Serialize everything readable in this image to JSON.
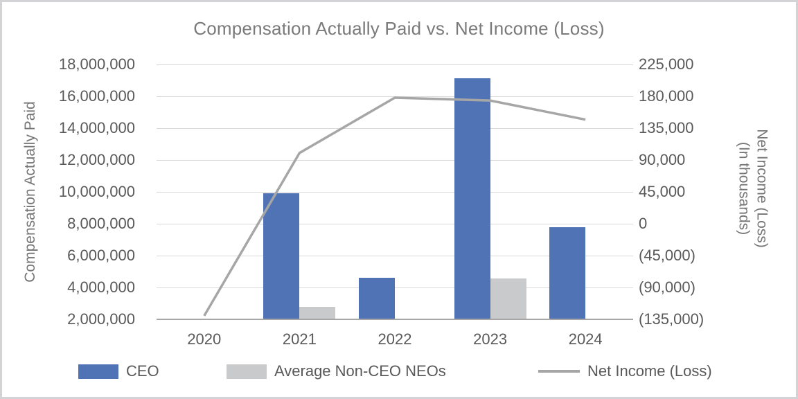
{
  "chart_data": {
    "type": "combo",
    "title": "Compensation Actually Paid vs. Net Income (Loss)",
    "categories": [
      "2020",
      "2021",
      "2022",
      "2023",
      "2024"
    ],
    "series": [
      {
        "name": "CEO",
        "type": "bar",
        "axis": "left",
        "color": "#4f73b5",
        "values": [
          null,
          9900000,
          4600000,
          17150000,
          7800000
        ]
      },
      {
        "name": "Average Non-CEO NEOs",
        "type": "bar",
        "axis": "left",
        "color": "#c9cacc",
        "values": [
          null,
          2800000,
          null,
          4550000,
          null
        ]
      },
      {
        "name": "Net Income (Loss)",
        "type": "line",
        "axis": "right",
        "color": "#a6a6a6",
        "values": [
          -130000,
          100000,
          178000,
          174000,
          147000
        ]
      }
    ],
    "left_axis": {
      "label": "Compensation Actually Paid",
      "ticks": [
        "18,000,000",
        "16,000,000",
        "14,000,000",
        "12,000,000",
        "10,000,000",
        "8,000,000",
        "6,000,000",
        "4,000,000",
        "2,000,000"
      ],
      "lim": [
        2000000,
        18000000
      ]
    },
    "right_axis": {
      "label_lines": [
        "Net Income (Loss)",
        "(In thousands)"
      ],
      "ticks": [
        "225,000",
        "180,000",
        "135,000",
        "90,000",
        "45,000",
        "0",
        "(45,000)",
        "(90,000)",
        "(135,000)"
      ],
      "lim": [
        -135000,
        225000
      ]
    },
    "grid": true,
    "legend_position": "bottom"
  }
}
